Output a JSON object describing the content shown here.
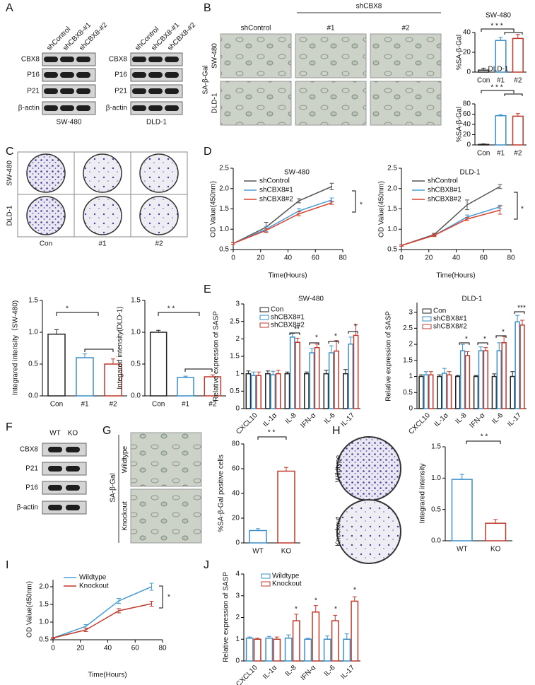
{
  "panels": [
    "A",
    "B",
    "C",
    "D",
    "E",
    "F",
    "G",
    "H",
    "I",
    "J"
  ],
  "panel_A": {
    "blots": [
      {
        "columns": [
          "shControl",
          "shCBX8-#1",
          "shCBX8-#2"
        ],
        "rows": [
          "CBX8",
          "P16",
          "P21",
          "β-actin"
        ],
        "cell_line": "SW-480"
      },
      {
        "columns": [
          "shControl",
          "shCBX8-#1",
          "shCBX8-#2"
        ],
        "rows": [
          "CBX8",
          "P16",
          "P21",
          "β-actin"
        ],
        "cell_line": "DLD-1"
      }
    ]
  },
  "panel_B": {
    "stain": "SA-β-Gal",
    "group": "shCBX8",
    "columns": [
      "shControl",
      "#1",
      "#2"
    ],
    "rows": [
      "SW-480",
      "DLD-1"
    ]
  },
  "panel_C": {
    "rows": [
      "SW-480",
      "DLD-1"
    ],
    "columns": [
      "Con",
      "#1",
      "#2"
    ]
  },
  "panel_F": {
    "columns": [
      "WT",
      "KO"
    ],
    "rows": [
      "CBX8",
      "P21",
      "P16",
      "β-actin"
    ]
  },
  "panel_G": {
    "stain": "SA-β-Gal",
    "rows": [
      "Wildtype",
      "Knockout"
    ]
  },
  "panel_H": {
    "rows": [
      "Wildtype",
      "Knockout"
    ]
  },
  "chart_data": [
    {
      "type": "bar",
      "title": "SW-480",
      "ylabel": "%SA-β-Gal",
      "categories": [
        "Con",
        "#1",
        "#2"
      ],
      "values": [
        2,
        32,
        34
      ],
      "errors": [
        2,
        3,
        4
      ],
      "colors": [
        "#222222",
        "#3a8fc8",
        "#c0392b"
      ],
      "ylim": [
        0,
        40
      ],
      "yticks": [
        0,
        20,
        40
      ],
      "annotations": [
        "* * *"
      ]
    },
    {
      "type": "bar",
      "title": "DLD-1",
      "ylabel": "%SA-β-Gal",
      "categories": [
        "Con",
        "#1",
        "#2"
      ],
      "values": [
        1,
        57,
        56
      ],
      "errors": [
        1,
        2,
        5
      ],
      "colors": [
        "#222222",
        "#3a8fc8",
        "#c0392b"
      ],
      "ylim": [
        0,
        80
      ],
      "yticks": [
        0,
        20,
        40,
        60,
        80
      ],
      "annotations": [
        "* * *"
      ]
    },
    {
      "type": "bar",
      "ylabel": "Integrared intensity（SW-480)",
      "categories": [
        "Con",
        "#1",
        "#2"
      ],
      "values": [
        0.97,
        0.6,
        0.5
      ],
      "errors": [
        0.07,
        0.06,
        0.08
      ],
      "colors": [
        "#222222",
        "#3a8fc8",
        "#c0392b"
      ],
      "ylim": [
        0,
        1.5
      ],
      "yticks": [
        {
          "value": 0,
          "label": "0.0"
        },
        0.5,
        {
          "value": 1,
          "label": "1.0"
        },
        1.5
      ],
      "annotations": [
        "*"
      ]
    },
    {
      "type": "bar",
      "ylabel": "Integared intensity(DLD-1)",
      "categories": [
        "Con",
        "#1",
        "#2"
      ],
      "values": [
        1.0,
        0.29,
        0.3
      ],
      "errors": [
        0.03,
        0.02,
        0.03
      ],
      "colors": [
        "#222222",
        "#3a8fc8",
        "#c0392b"
      ],
      "ylim": [
        0,
        1.5
      ],
      "yticks": [
        {
          "value": 0,
          "label": "0.0"
        },
        0.5,
        {
          "value": 1,
          "label": "1.0"
        },
        1.5
      ],
      "annotations": [
        "* *"
      ]
    },
    {
      "type": "line",
      "title": "SW-480",
      "xlabel": "Time(Hours)",
      "ylabel": "OD Value(450nm)",
      "x": [
        0,
        24,
        48,
        72
      ],
      "series": [
        {
          "name": "shControl",
          "color": "#555555",
          "values": [
            0.65,
            1.05,
            1.7,
            2.05
          ],
          "errors": [
            0.02,
            0.12,
            0.05,
            0.08
          ]
        },
        {
          "name": "shCBX8#1",
          "color": "#4a9fd6",
          "values": [
            0.65,
            1.0,
            1.45,
            1.72
          ],
          "errors": [
            0.02,
            0.06,
            0.06,
            0.05
          ]
        },
        {
          "name": "shCBX8#2",
          "color": "#d9432f",
          "values": [
            0.65,
            0.97,
            1.38,
            1.65
          ],
          "errors": [
            0.02,
            0.05,
            0.05,
            0.04
          ]
        }
      ],
      "xlim": [
        0,
        80
      ],
      "xticks": [
        0,
        20,
        40,
        60,
        80
      ],
      "ylim": [
        0.5,
        2.5
      ],
      "yticks": [
        0.5,
        {
          "value": 1,
          "label": "1.0"
        },
        1.5,
        {
          "value": 2,
          "label": "2.0"
        },
        2.5
      ],
      "annotations": [
        "*"
      ]
    },
    {
      "type": "line",
      "title": "DLD-1",
      "xlabel": "Time(Hours)",
      "ylabel": "OD Value(450nm)",
      "x": [
        0,
        24,
        48,
        72
      ],
      "series": [
        {
          "name": "shControl",
          "color": "#555555",
          "values": [
            0.6,
            0.87,
            1.6,
            2.05
          ],
          "errors": [
            0.02,
            0.03,
            0.12,
            0.05
          ]
        },
        {
          "name": "shCBX8#1",
          "color": "#4a9fd6",
          "values": [
            0.6,
            0.85,
            1.3,
            1.55
          ],
          "errors": [
            0.02,
            0.03,
            0.05,
            0.04
          ]
        },
        {
          "name": "shCBX8#2",
          "color": "#d9432f",
          "values": [
            0.6,
            0.85,
            1.25,
            1.47
          ],
          "errors": [
            0.02,
            0.03,
            0.04,
            0.1
          ]
        }
      ],
      "xlim": [
        0,
        80
      ],
      "xticks": [
        0,
        20,
        40,
        60,
        80
      ],
      "ylim": [
        0.5,
        2.5
      ],
      "yticks": [
        0.5,
        {
          "value": 1,
          "label": "1.0"
        },
        1.5,
        {
          "value": 2,
          "label": "2.0"
        },
        2.5
      ],
      "annotations": [
        "*"
      ]
    },
    {
      "type": "bar",
      "title": "SW-480",
      "ylabel": "Relative expression of SASP",
      "categories": [
        "CXCL10",
        "IL-1α",
        "IL-8",
        "IFN-α",
        "IL-6",
        "IL-17"
      ],
      "series": [
        {
          "name": "Con",
          "color": "#222222",
          "values": [
            1,
            1,
            1,
            1,
            1,
            1
          ],
          "errors": [
            0.08,
            0.08,
            0.05,
            0.05,
            0.1,
            0.12
          ]
        },
        {
          "name": "shCBX8#1",
          "color": "#3a8fc8",
          "values": [
            0.95,
            0.97,
            2.05,
            1.6,
            1.6,
            1.85
          ],
          "errors": [
            0.1,
            0.1,
            0.1,
            0.12,
            0.2,
            0.2
          ]
        },
        {
          "name": "shCBX8#2",
          "color": "#c0392b",
          "values": [
            0.95,
            1.0,
            1.9,
            1.75,
            1.65,
            2.1
          ],
          "errors": [
            0.1,
            0.1,
            0.12,
            0.1,
            0.3,
            0.3
          ]
        }
      ],
      "ylim": [
        0,
        3
      ],
      "yticks": [
        0,
        0.5,
        1,
        1.5,
        2,
        2.5,
        3
      ],
      "annotations": [
        "**",
        "*",
        "*",
        "*"
      ]
    },
    {
      "type": "bar",
      "title": "DLD-1",
      "ylabel": "Relative expression of SASP",
      "categories": [
        "CXCL10",
        "IL-1α",
        "IL-8",
        "IFN-α",
        "IL-6",
        "IL-17"
      ],
      "series": [
        {
          "name": "Con",
          "color": "#222222",
          "values": [
            1,
            1,
            1,
            1,
            1,
            1
          ],
          "errors": [
            0.05,
            0.05,
            0.03,
            0.03,
            0.08,
            0.15
          ]
        },
        {
          "name": "shCBX8#1",
          "color": "#3a8fc8",
          "values": [
            1.05,
            1.1,
            1.8,
            1.8,
            1.8,
            2.7
          ],
          "errors": [
            0.1,
            0.15,
            0.2,
            0.12,
            0.25,
            0.2
          ]
        },
        {
          "name": "shCBX8#2",
          "color": "#c0392b",
          "values": [
            1.05,
            1.05,
            1.65,
            1.8,
            2.05,
            2.6
          ],
          "errors": [
            0.1,
            0.1,
            0.12,
            0.1,
            0.2,
            0.15
          ]
        }
      ],
      "ylim": [
        0,
        3.3
      ],
      "yticks": [
        0,
        0.5,
        1,
        1.5,
        2,
        2.5,
        3
      ],
      "annotations": [
        "*",
        "*",
        "*",
        "***"
      ]
    },
    {
      "type": "bar",
      "ylabel": "%SA-β-Gal positive cells",
      "categories": [
        "WT",
        "KO"
      ],
      "values": [
        10,
        58
      ],
      "errors": [
        1.5,
        3
      ],
      "colors": [
        "#3a8fc8",
        "#c0392b"
      ],
      "ylim": [
        0,
        80
      ],
      "yticks": [
        0,
        20,
        40,
        60,
        80
      ],
      "annotations": [
        "* *"
      ]
    },
    {
      "type": "bar",
      "ylabel": "Integrared intensity",
      "categories": [
        "WT",
        "KO"
      ],
      "values": [
        0.98,
        0.28
      ],
      "errors": [
        0.08,
        0.06
      ],
      "colors": [
        "#3a8fc8",
        "#c0392b"
      ],
      "ylim": [
        0,
        1.5
      ],
      "yticks": [
        {
          "value": 0,
          "label": "0.0"
        },
        0.5,
        {
          "value": 1,
          "label": "1.0"
        },
        1.5
      ],
      "annotations": [
        "* *"
      ]
    },
    {
      "type": "line",
      "xlabel": "Time(Hours)",
      "ylabel": "OD Value(450nm)",
      "x": [
        0,
        24,
        48,
        72
      ],
      "series": [
        {
          "name": "Wildtype",
          "color": "#4a9fd6",
          "values": [
            0.55,
            0.88,
            1.6,
            2.0
          ],
          "errors": [
            0.02,
            0.05,
            0.07,
            0.1
          ]
        },
        {
          "name": "Knockout",
          "color": "#c0392b",
          "values": [
            0.55,
            0.78,
            1.32,
            1.52
          ],
          "errors": [
            0.02,
            0.05,
            0.06,
            0.07
          ]
        }
      ],
      "xlim": [
        0,
        80
      ],
      "xticks": [
        0,
        20,
        40,
        60,
        80
      ],
      "ylim": [
        0.5,
        2.2
      ],
      "yticks": [
        0.5,
        {
          "value": 1,
          "label": "1.0"
        },
        1.5,
        {
          "value": 2,
          "label": "2.0"
        }
      ],
      "annotations": [
        "*"
      ]
    },
    {
      "type": "bar",
      "ylabel": "Relative expression of SASP",
      "categories": [
        "CXCL10",
        "IL-1α",
        "IL-8",
        "IFN-α",
        "IL-6",
        "IL-17"
      ],
      "series": [
        {
          "name": "Wildtype",
          "color": "#3a8fc8",
          "values": [
            1.05,
            1.05,
            1.05,
            1.0,
            1.0,
            1.0
          ],
          "errors": [
            0.05,
            0.08,
            0.15,
            0.05,
            0.15,
            0.25
          ]
        },
        {
          "name": "Knockout",
          "color": "#c0392b",
          "values": [
            1.0,
            1.0,
            1.85,
            2.25,
            1.85,
            2.75
          ],
          "errors": [
            0.05,
            0.1,
            0.3,
            0.3,
            0.25,
            0.2
          ]
        }
      ],
      "ylim": [
        0,
        4
      ],
      "yticks": [
        0,
        1,
        2,
        3,
        4
      ],
      "annotations": [
        "*",
        "*",
        "*",
        "*"
      ]
    }
  ]
}
